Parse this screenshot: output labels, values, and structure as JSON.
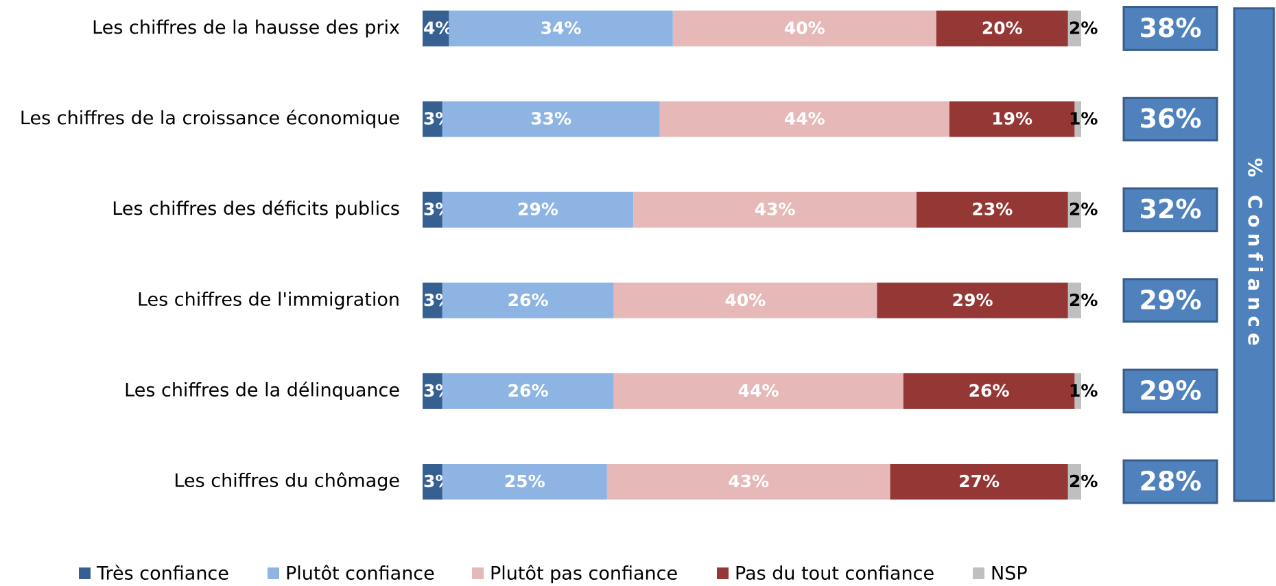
{
  "chart_data": {
    "type": "stacked_bar_horizontal",
    "categories": [
      "Les chiffres de la hausse des prix",
      "Les chiffres de la croissance économique",
      "Les chiffres des déficits publics",
      "Les chiffres de l'immigration",
      "Les chiffres de la délinquance",
      "Les chiffres du chômage"
    ],
    "xlim": [
      0,
      100
    ],
    "legend": "bottom",
    "series": [
      {
        "name": "Très confiance",
        "color": "#376092",
        "values": [
          4,
          3,
          3,
          3,
          3,
          3
        ],
        "value_labels": [
          "4%",
          "3%",
          "3%",
          "3%",
          "3%",
          "3%"
        ]
      },
      {
        "name": "Plutôt confiance",
        "color": "#8eb4e3",
        "values": [
          34,
          33,
          29,
          26,
          26,
          25
        ],
        "value_labels": [
          "34%",
          "33%",
          "29%",
          "26%",
          "26%",
          "25%"
        ]
      },
      {
        "name": "Plutôt pas confiance",
        "color": "#e6b9b8",
        "values": [
          40,
          44,
          43,
          40,
          44,
          43
        ],
        "value_labels": [
          "40%",
          "44%",
          "43%",
          "40%",
          "44%",
          "43%"
        ]
      },
      {
        "name": "Pas du tout confiance",
        "color": "#953735",
        "values": [
          20,
          19,
          23,
          29,
          26,
          27
        ],
        "value_labels": [
          "20%",
          "19%",
          "23%",
          "29%",
          "26%",
          "27%"
        ]
      },
      {
        "name": "NSP",
        "color": "#bfbfbf",
        "values": [
          2,
          1,
          2,
          2,
          1,
          2
        ],
        "value_labels": [
          "2%",
          "1%",
          "2%",
          "2%",
          "1%",
          "2%"
        ]
      }
    ],
    "confidence": {
      "label": "% Confiance",
      "values": [
        38,
        36,
        32,
        29,
        29,
        28
      ],
      "value_labels": [
        "38%",
        "36%",
        "32%",
        "29%",
        "29%",
        "28%"
      ]
    }
  }
}
